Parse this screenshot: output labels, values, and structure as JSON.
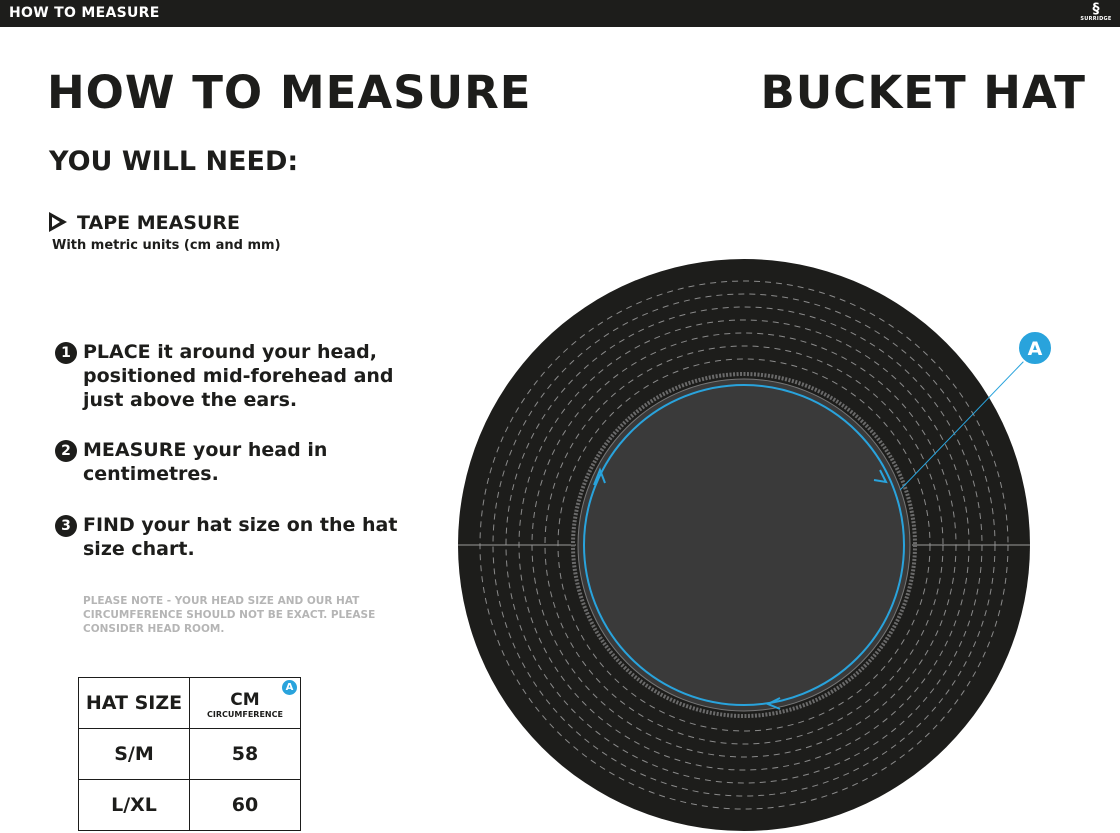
{
  "topbar": {
    "title": "HOW TO MEASURE",
    "logo_text": "SURRIDGE"
  },
  "header": {
    "title": "HOW TO MEASURE",
    "product": "BUCKET HAT"
  },
  "needs": {
    "heading": "YOU WILL NEED:",
    "item": "TAPE MEASURE",
    "item_sub": "With metric units (cm and mm)"
  },
  "steps": [
    {
      "num": "1",
      "text": "PLACE it around your head, positioned mid-forehead and just above the ears."
    },
    {
      "num": "2",
      "text": "MEASURE your head in centimetres."
    },
    {
      "num": "3",
      "text": "FIND your hat size on the hat size chart."
    }
  ],
  "note": "PLEASE NOTE - YOUR HEAD SIZE AND OUR HAT CIRCUMFERENCE SHOULD NOT BE EXACT. PLEASE CONSIDER HEAD ROOM.",
  "size_table": {
    "headers": {
      "size": "HAT SIZE",
      "cm": "CM",
      "cm_sub": "CIRCUMFERENCE",
      "badge": "A"
    },
    "rows": [
      {
        "size": "S/M",
        "cm": "58"
      },
      {
        "size": "L/XL",
        "cm": "60"
      }
    ]
  },
  "diagram": {
    "marker": "A",
    "accent": "#29a3dc"
  }
}
